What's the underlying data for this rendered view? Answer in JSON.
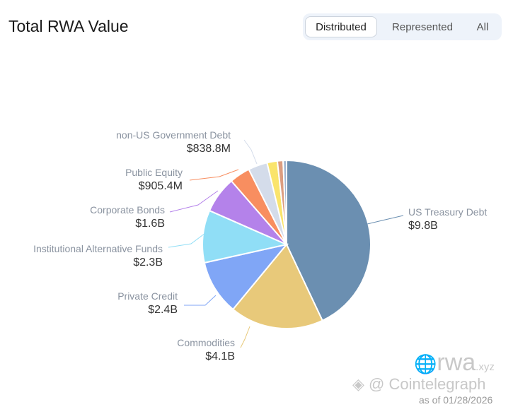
{
  "header": {
    "title": "Total RWA Value",
    "tabs": [
      {
        "label": "Distributed",
        "active": true
      },
      {
        "label": "Represented",
        "active": false
      },
      {
        "label": "All",
        "active": false
      }
    ]
  },
  "chart_data": {
    "type": "pie",
    "title": "",
    "unit": "USD billions",
    "slices": [
      {
        "name": "US Treasury Debt",
        "label": "$9.8B",
        "value": 9.8,
        "color": "#6b8fb1"
      },
      {
        "name": "Commodities",
        "label": "$4.1B",
        "value": 4.1,
        "color": "#e8c97a"
      },
      {
        "name": "Private Credit",
        "label": "$2.4B",
        "value": 2.4,
        "color": "#80a6f6"
      },
      {
        "name": "Institutional Alternative Funds",
        "label": "$2.3B",
        "value": 2.3,
        "color": "#90def6"
      },
      {
        "name": "Corporate Bonds",
        "label": "$1.6B",
        "value": 1.6,
        "color": "#b482ea"
      },
      {
        "name": "Public Equity",
        "label": "$905.4M",
        "value": 0.9054,
        "color": "#f88e60"
      },
      {
        "name": "non-US Government Debt",
        "label": "$838.8M",
        "value": 0.8388,
        "color": "#d4dcea"
      },
      {
        "name": "",
        "label": "",
        "value": 0.45,
        "color": "#fae46c"
      },
      {
        "name": "",
        "label": "",
        "value": 0.25,
        "color": "#dc9d80"
      },
      {
        "name": "",
        "label": "",
        "value": 0.15,
        "color": "#a3b6d0"
      }
    ]
  },
  "footer": {
    "watermark_rwa": "rwa",
    "watermark_xyz": ".xyz",
    "watermark_ct": "@ Cointelegraph",
    "as_of": "as of 01/28/2026"
  }
}
